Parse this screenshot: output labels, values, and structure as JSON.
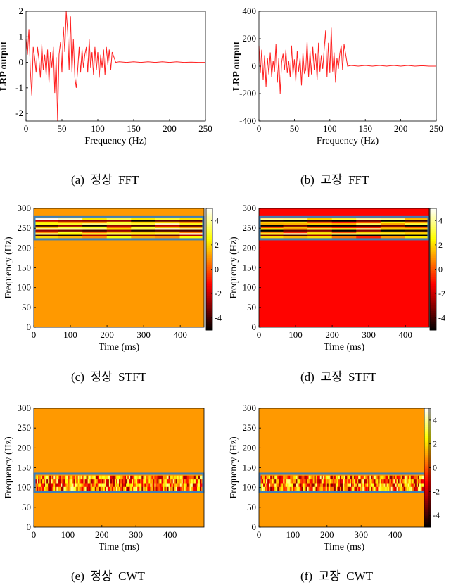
{
  "captions": {
    "a": "(a)  정상  FFT",
    "b": "(b)  고장  FFT",
    "c": "(c)  정상  STFT",
    "d": "(d)  고장  STFT",
    "e": "(e)  정상  CWT",
    "f": "(f)  고장  CWT"
  },
  "colors": {
    "line": "#ff2020",
    "highlight_box": "#3d7fb8",
    "axis": "#000000"
  },
  "colorbar": {
    "colormap": "hot",
    "range": [
      -5,
      5
    ],
    "ticks": [
      -4,
      -2,
      0,
      2,
      4
    ]
  },
  "chart_data": [
    {
      "id": "a",
      "type": "line",
      "xlabel": "Frequency (Hz)",
      "ylabel": "LRP output",
      "xlim": [
        0,
        250
      ],
      "ylim": [
        -2.3,
        2
      ],
      "xticks": [
        0,
        50,
        100,
        150,
        200,
        250
      ],
      "yticks": [
        -2,
        -1,
        0,
        1,
        2
      ],
      "x": [
        0,
        2,
        4,
        6,
        8,
        10,
        12,
        14,
        16,
        18,
        20,
        22,
        24,
        26,
        28,
        30,
        32,
        34,
        36,
        38,
        40,
        42,
        44,
        46,
        48,
        50,
        52,
        54,
        56,
        58,
        60,
        62,
        64,
        66,
        68,
        70,
        72,
        74,
        76,
        78,
        80,
        82,
        84,
        86,
        88,
        90,
        92,
        94,
        96,
        98,
        100,
        102,
        104,
        106,
        108,
        110,
        112,
        114,
        116,
        118,
        120,
        125,
        130,
        140,
        150,
        160,
        170,
        180,
        190,
        200,
        210,
        220,
        230,
        240,
        250
      ],
      "y": [
        0.9,
        0.3,
        1.3,
        -0.3,
        -1.3,
        0.6,
        0.2,
        -0.4,
        0.6,
        0.1,
        -0.6,
        0.7,
        -0.3,
        0.3,
        -0.5,
        0.5,
        -0.8,
        0.4,
        -0.2,
        0.6,
        -1.2,
        0.2,
        -2.3,
        0.3,
        0.8,
        -0.4,
        1.4,
        0.4,
        2.0,
        1.2,
        -0.3,
        1.8,
        -0.4,
        0.9,
        -0.6,
        -1.0,
        -0.3,
        0.6,
        -0.4,
        0.5,
        -0.2,
        0.3,
        0.6,
        -0.4,
        0.9,
        -0.2,
        0.4,
        -0.5,
        0.6,
        -0.3,
        0.4,
        -0.6,
        0.3,
        -0.2,
        0.5,
        -0.5,
        0.6,
        -0.1,
        0.5,
        -0.3,
        0.4,
        0.0,
        0.02,
        0.0,
        0.02,
        0.0,
        0.02,
        0.0,
        0.02,
        0.0,
        0.02,
        0.0,
        0.01,
        0.0,
        0.0
      ]
    },
    {
      "id": "b",
      "type": "line",
      "xlabel": "Frequency (Hz)",
      "ylabel": "LRP output",
      "xlim": [
        0,
        250
      ],
      "ylim": [
        -400,
        400
      ],
      "xticks": [
        0,
        50,
        100,
        150,
        200,
        250
      ],
      "yticks": [
        -400,
        -200,
        0,
        200,
        400
      ],
      "x": [
        0,
        2,
        4,
        6,
        8,
        10,
        12,
        14,
        16,
        18,
        20,
        22,
        24,
        26,
        28,
        30,
        32,
        34,
        36,
        38,
        40,
        42,
        44,
        46,
        48,
        50,
        52,
        54,
        56,
        58,
        60,
        62,
        64,
        66,
        68,
        70,
        72,
        74,
        76,
        78,
        80,
        82,
        84,
        86,
        88,
        90,
        92,
        94,
        96,
        98,
        100,
        102,
        104,
        106,
        108,
        110,
        112,
        114,
        116,
        118,
        120,
        125,
        130,
        140,
        150,
        160,
        170,
        180,
        190,
        200,
        210,
        220,
        230,
        240,
        250
      ],
      "y": [
        150,
        -50,
        120,
        -100,
        80,
        -150,
        60,
        -60,
        100,
        -80,
        40,
        -40,
        160,
        -120,
        60,
        -200,
        30,
        90,
        -30,
        120,
        -50,
        40,
        -80,
        150,
        -60,
        50,
        -110,
        110,
        -40,
        60,
        -140,
        100,
        -50,
        -30,
        180,
        -80,
        110,
        -60,
        140,
        -30,
        90,
        -100,
        170,
        -40,
        80,
        -20,
        120,
        260,
        -80,
        170,
        -50,
        280,
        -40,
        100,
        -120,
        60,
        -20,
        90,
        150,
        -30,
        160,
        0,
        5,
        0,
        5,
        0,
        5,
        0,
        5,
        0,
        5,
        0,
        3,
        0,
        0
      ]
    },
    {
      "id": "c",
      "type": "heatmap",
      "xlabel": "Time (ms)",
      "ylabel": "Frequency (Hz)",
      "xlim": [
        0,
        465
      ],
      "ylim": [
        0,
        300
      ],
      "xticks": [
        0,
        100,
        200,
        300,
        400
      ],
      "yticks": [
        0,
        50,
        100,
        150,
        200,
        250,
        300
      ],
      "background_value": 1.0,
      "band": [
        225,
        275
      ],
      "time_segments": 7,
      "freq_rows": 12,
      "highlight": {
        "x": [
          0,
          465
        ],
        "y": [
          222,
          278
        ]
      }
    },
    {
      "id": "d",
      "type": "heatmap",
      "xlabel": "Time (ms)",
      "ylabel": "Frequency (Hz)",
      "xlim": [
        0,
        465
      ],
      "ylim": [
        0,
        300
      ],
      "xticks": [
        0,
        100,
        200,
        300,
        400
      ],
      "yticks": [
        0,
        50,
        100,
        150,
        200,
        250,
        300
      ],
      "background_value": -1.2,
      "band": [
        225,
        275
      ],
      "time_segments": 7,
      "freq_rows": 12,
      "highlight": {
        "x": [
          0,
          465
        ],
        "y": [
          222,
          278
        ]
      }
    },
    {
      "id": "e",
      "type": "heatmap",
      "xlabel": "Time (ms)",
      "ylabel": "Frequency (Hz)",
      "xlim": [
        0,
        500
      ],
      "ylim": [
        0,
        300
      ],
      "xticks": [
        0,
        100,
        200,
        300,
        400
      ],
      "yticks": [
        0,
        50,
        100,
        150,
        200,
        250,
        300
      ],
      "background_value": 1.0,
      "band": [
        92,
        130
      ],
      "time_segments": 120,
      "freq_rows": 4,
      "highlight": {
        "x": [
          0,
          500
        ],
        "y": [
          88,
          135
        ]
      }
    },
    {
      "id": "f",
      "type": "heatmap",
      "xlabel": "Time (ms)",
      "ylabel": "Frequency (Hz)",
      "xlim": [
        0,
        500
      ],
      "ylim": [
        0,
        300
      ],
      "xticks": [
        0,
        100,
        200,
        300,
        400
      ],
      "yticks": [
        0,
        50,
        100,
        150,
        200,
        250,
        300
      ],
      "background_value": 1.0,
      "band": [
        92,
        130
      ],
      "time_segments": 120,
      "freq_rows": 4,
      "highlight": {
        "x": [
          0,
          500
        ],
        "y": [
          88,
          135
        ]
      }
    }
  ]
}
